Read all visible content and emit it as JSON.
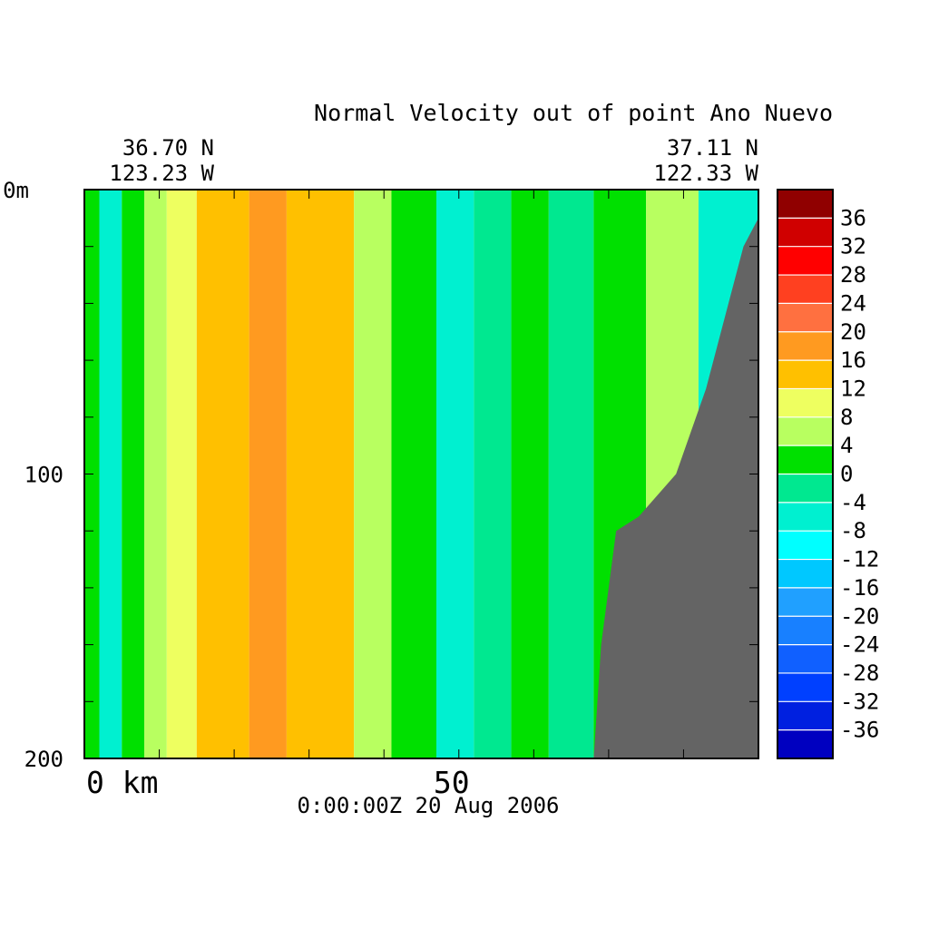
{
  "chart_data": {
    "type": "heatmap",
    "title": "Normal Velocity out of point Ano Nuevo",
    "start_location": {
      "lat": "36.70 N",
      "lon": "123.23 W"
    },
    "end_location": {
      "lat": "37.11 N",
      "lon": "122.33 W"
    },
    "timestamp": "0:00:00Z  20 Aug 2006",
    "x_axis": {
      "label": "km",
      "range": [
        0,
        90
      ],
      "ticks": [
        0,
        50
      ],
      "tick_labels": [
        "0 km",
        "50"
      ]
    },
    "y_axis": {
      "label": "m",
      "range": [
        0,
        200
      ],
      "inverted": true,
      "ticks": [
        0,
        100,
        200
      ],
      "tick_labels": [
        "0m",
        "100",
        "200"
      ]
    },
    "colorbar": {
      "levels": [
        -40,
        -36,
        -32,
        -28,
        -24,
        -20,
        -16,
        -12,
        -8,
        -4,
        0,
        4,
        8,
        12,
        16,
        20,
        24,
        28,
        32,
        36,
        40
      ],
      "labels": [
        "36",
        "32",
        "28",
        "24",
        "20",
        "16",
        "12",
        "8",
        "4",
        "0",
        "-4",
        "-8",
        "-12",
        "-16",
        "-20",
        "-24",
        "-28",
        "-32",
        "-36"
      ],
      "colors": [
        "#0000c0",
        "#0020e0",
        "#0040ff",
        "#1060ff",
        "#1880ff",
        "#20a0ff",
        "#00c8ff",
        "#00ffff",
        "#00f0d0",
        "#00e890",
        "#00e000",
        "#b8ff60",
        "#eeff60",
        "#ffc000",
        "#ff9a20",
        "#ff7040",
        "#ff4020",
        "#ff0000",
        "#d00000",
        "#900000"
      ]
    },
    "bands": [
      {
        "x": [
          0,
          2
        ],
        "value": 2
      },
      {
        "x": [
          2,
          5
        ],
        "value": -5
      },
      {
        "x": [
          5,
          8
        ],
        "value": 1
      },
      {
        "x": [
          8,
          11
        ],
        "value": 6
      },
      {
        "x": [
          11,
          15
        ],
        "value": 10
      },
      {
        "x": [
          15,
          22
        ],
        "value": 14
      },
      {
        "x": [
          22,
          27
        ],
        "value": 18
      },
      {
        "x": [
          27,
          36
        ],
        "value": 14
      },
      {
        "x": [
          36,
          41
        ],
        "value": 7
      },
      {
        "x": [
          41,
          47
        ],
        "value": 1
      },
      {
        "x": [
          47,
          52
        ],
        "value": -5
      },
      {
        "x": [
          52,
          57
        ],
        "value": -2
      },
      {
        "x": [
          57,
          62
        ],
        "value": 1
      },
      {
        "x": [
          62,
          68
        ],
        "value": -3
      },
      {
        "x": [
          68,
          75
        ],
        "value": 2
      },
      {
        "x": [
          75,
          82
        ],
        "value": 5
      },
      {
        "x": [
          82,
          90
        ],
        "value": -6
      }
    ],
    "bathymetry": [
      [
        68,
        200
      ],
      [
        69,
        160
      ],
      [
        71,
        120
      ],
      [
        74,
        115
      ],
      [
        79,
        100
      ],
      [
        83,
        70
      ],
      [
        86,
        40
      ],
      [
        88,
        20
      ],
      [
        90,
        10
      ],
      [
        90,
        200
      ]
    ],
    "land_color": "#646464"
  }
}
